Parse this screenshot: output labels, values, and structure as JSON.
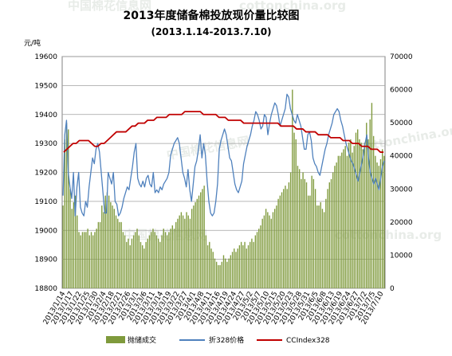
{
  "chart_data": {
    "type": "bar",
    "title": "2013年度储备棉投放现价量比较图",
    "subtitle": "(2013.1.14-2013.7.10)",
    "ylabel_left": "元/吨",
    "watermarks": [
      "中国棉花信息网",
      "cottonchina.org"
    ],
    "left_axis": {
      "min": 18800,
      "max": 19600,
      "step": 100
    },
    "right_axis": {
      "min": 0,
      "max": 70000,
      "step": 10000
    },
    "x_tick_labels": [
      "2013/1/14",
      "2013/1/17",
      "2013/1/22",
      "2013/1/25",
      "2013/1/30",
      "2013/2/4",
      "2013/2/18",
      "2013/2/21",
      "2013/2/26",
      "2013/3/1",
      "2013/3/6",
      "2013/3/11",
      "2013/3/14",
      "2013/3/19",
      "2013/3/22",
      "2013/3/27",
      "2013/4/1",
      "2013/4/8",
      "2013/4/11",
      "2013/4/16",
      "2013/4/19",
      "2013/4/24",
      "2013/4/27",
      "2013/5/2",
      "2013/5/7",
      "2013/5/10",
      "2013/5/15",
      "2013/5/20",
      "2013/5/23",
      "2013/5/28",
      "2013/5/31",
      "2013/6/5",
      "2013/6/8",
      "2013/6/13",
      "2013/6/19",
      "2013/6/24",
      "2013/6/27",
      "2013/7/2",
      "2013/7/5",
      "2013/7/10"
    ],
    "grid": true,
    "legend_position": "bottom",
    "series": [
      {
        "name": "抛储成交",
        "type": "bar",
        "axis": "right",
        "color": "#7f9a3c",
        "values": [
          25000,
          45000,
          50000,
          48000,
          30000,
          24000,
          26000,
          28000,
          22000,
          17000,
          16000,
          17000,
          17000,
          17000,
          18000,
          16000,
          17000,
          16000,
          17000,
          18000,
          20000,
          20000,
          25000,
          23000,
          28000,
          29000,
          28000,
          26000,
          25000,
          24000,
          22000,
          21000,
          20000,
          20000,
          17000,
          16000,
          14000,
          15000,
          13000,
          15000,
          16000,
          17000,
          18000,
          16000,
          14000,
          13000,
          12000,
          14000,
          15000,
          16000,
          17000,
          18000,
          17000,
          16000,
          15000,
          14000,
          16000,
          18000,
          17000,
          16000,
          17000,
          18000,
          19000,
          18000,
          20000,
          21000,
          22000,
          23000,
          22000,
          21000,
          23000,
          22000,
          21000,
          24000,
          25000,
          26000,
          27000,
          28000,
          29000,
          30000,
          31000,
          16000,
          13000,
          14000,
          12000,
          11000,
          9000,
          8000,
          7000,
          7000,
          8000,
          10000,
          9000,
          8000,
          9000,
          10000,
          11000,
          12000,
          11000,
          12000,
          13000,
          14000,
          13000,
          14000,
          12000,
          13000,
          14000,
          15000,
          14000,
          16000,
          17000,
          18000,
          19000,
          21000,
          22000,
          24000,
          23000,
          22000,
          21000,
          23000,
          24000,
          25000,
          27000,
          28000,
          29000,
          30000,
          31000,
          30000,
          32000,
          35000,
          60000,
          47000,
          45000,
          37000,
          36000,
          33000,
          35000,
          33000,
          32000,
          28000,
          28000,
          34000,
          33000,
          30000,
          25000,
          25000,
          26000,
          24000,
          23000,
          27000,
          30000,
          32000,
          33000,
          35000,
          37000,
          38000,
          40000,
          40000,
          41000,
          42000,
          43000,
          40000,
          44000,
          45000,
          41000,
          43000,
          47000,
          48000,
          45000,
          44000,
          42000,
          44000,
          50000,
          45000,
          51000,
          56000,
          46000,
          40000,
          38000,
          37000,
          39000,
          42000,
          40000
        ]
      },
      {
        "name": "折328价格",
        "type": "line",
        "axis": "left",
        "color": "#4f81bd",
        "values": [
          19120,
          19330,
          19380,
          19200,
          19150,
          19110,
          19200,
          19050,
          19150,
          19200,
          19080,
          19060,
          19050,
          19100,
          19080,
          19150,
          19200,
          19250,
          19230,
          19280,
          19300,
          19270,
          19200,
          19130,
          19060,
          19060,
          19200,
          19180,
          19160,
          19200,
          19100,
          19090,
          19050,
          19060,
          19080,
          19110,
          19130,
          19150,
          19140,
          19180,
          19220,
          19270,
          19300,
          19180,
          19160,
          19150,
          19170,
          19150,
          19180,
          19190,
          19160,
          19150,
          19200,
          19130,
          19140,
          19130,
          19150,
          19140,
          19160,
          19170,
          19180,
          19200,
          19260,
          19280,
          19300,
          19310,
          19320,
          19300,
          19250,
          19200,
          19180,
          19150,
          19210,
          19140,
          19100,
          19160,
          19220,
          19240,
          19280,
          19330,
          19250,
          19300,
          19260,
          19170,
          19100,
          19060,
          19050,
          19060,
          19100,
          19160,
          19280,
          19310,
          19330,
          19350,
          19330,
          19290,
          19250,
          19240,
          19200,
          19160,
          19140,
          19130,
          19150,
          19170,
          19230,
          19260,
          19290,
          19310,
          19330,
          19360,
          19380,
          19410,
          19400,
          19380,
          19350,
          19360,
          19400,
          19390,
          19330,
          19370,
          19400,
          19420,
          19440,
          19430,
          19400,
          19360,
          19380,
          19400,
          19420,
          19470,
          19460,
          19420,
          19400,
          19380,
          19370,
          19400,
          19380,
          19360,
          19320,
          19280,
          19280,
          19330,
          19340,
          19310,
          19250,
          19230,
          19220,
          19200,
          19190,
          19220,
          19250,
          19280,
          19300,
          19330,
          19350,
          19370,
          19400,
          19410,
          19420,
          19410,
          19380,
          19360,
          19330,
          19300,
          19280,
          19260,
          19240,
          19230,
          19210,
          19190,
          19170,
          19200,
          19230,
          19260,
          19300,
          19330,
          19250,
          19200,
          19180,
          19160,
          19180,
          19160,
          19140,
          19180,
          19220,
          19240
        ]
      },
      {
        "name": "CCIndex328",
        "type": "line",
        "axis": "left",
        "color": "#c00000",
        "values": [
          19270,
          19280,
          19290,
          19300,
          19300,
          19310,
          19310,
          19310,
          19310,
          19300,
          19290,
          19290,
          19300,
          19300,
          19310,
          19320,
          19330,
          19340,
          19340,
          19340,
          19340,
          19350,
          19360,
          19360,
          19370,
          19370,
          19370,
          19380,
          19380,
          19380,
          19390,
          19390,
          19390,
          19390,
          19400,
          19400,
          19400,
          19400,
          19400,
          19410,
          19410,
          19410,
          19410,
          19410,
          19410,
          19400,
          19400,
          19400,
          19400,
          19400,
          19390,
          19390,
          19390,
          19380,
          19380,
          19380,
          19380,
          19380,
          19370,
          19370,
          19370,
          19370,
          19370,
          19370,
          19370,
          19370,
          19370,
          19370,
          19370,
          19370,
          19360,
          19360,
          19360,
          19360,
          19360,
          19350,
          19350,
          19350,
          19340,
          19340,
          19340,
          19340,
          19330,
          19330,
          19330,
          19330,
          19320,
          19320,
          19320,
          19320,
          19310,
          19310,
          19310,
          19300,
          19300,
          19300,
          19290,
          19290,
          19290,
          19280,
          19280,
          19280,
          19270,
          19270
        ]
      }
    ]
  }
}
